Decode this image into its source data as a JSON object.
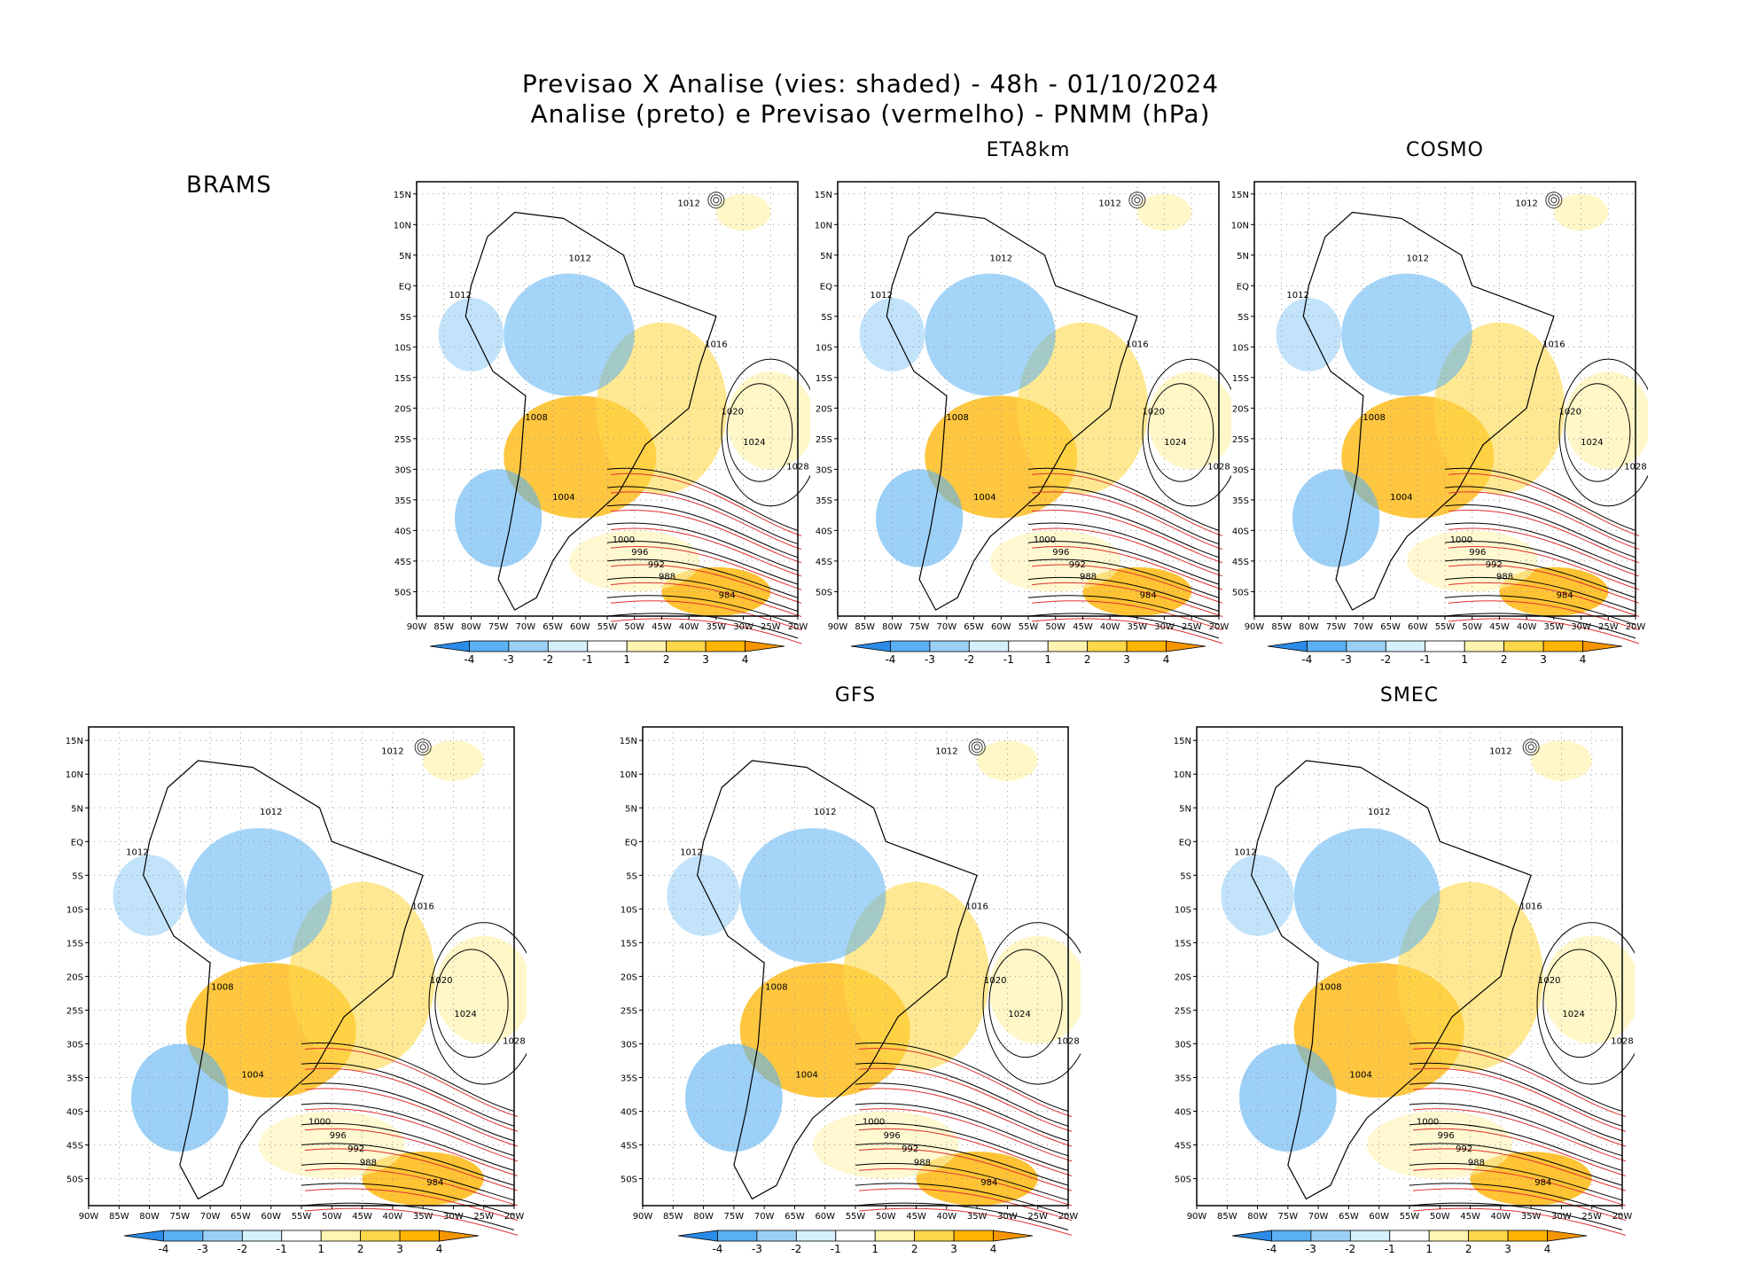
{
  "title": {
    "line1": "Previsao X Analise (vies: shaded) - 48h - 01/10/2024",
    "line2": "Analise (preto) e Previsao (vermelho) - PNMM (hPa)"
  },
  "top_left_label": "BRAMS",
  "lat_ticks": [
    "15N",
    "10N",
    "5N",
    "EQ",
    "5S",
    "10S",
    "15S",
    "20S",
    "25S",
    "30S",
    "35S",
    "40S",
    "45S",
    "50S"
  ],
  "lon_ticks": [
    "90W",
    "85W",
    "80W",
    "75W",
    "70W",
    "65W",
    "60W",
    "55W",
    "50W",
    "45W",
    "40W",
    "35W",
    "30W",
    "25W",
    "20W"
  ],
  "colorbar_ticks": [
    "-4",
    "-3",
    "-2",
    "-1",
    "1",
    "2",
    "3",
    "4"
  ],
  "colorbar_colors": [
    "#2b8be8",
    "#5ab1f2",
    "#9ad0f6",
    "#d4f0fb",
    "#ffffff",
    "#fff4b0",
    "#ffd84a",
    "#ffb400",
    "#f59500"
  ],
  "contour_colors": {
    "analysis": "#000000",
    "forecast": "#e03030"
  },
  "panels": [
    {
      "title": "",
      "contour_labels": [
        "1012",
        "1012",
        "1012",
        "1016",
        "1020",
        "1024",
        "1028",
        "1008",
        "1004",
        "1000",
        "996",
        "992",
        "988",
        "984"
      ]
    },
    {
      "title": "ETA8km",
      "contour_labels": [
        "1012",
        "1012",
        "1012",
        "1016",
        "1020",
        "1024",
        "1028",
        "1008",
        "1004",
        "1000",
        "996",
        "992",
        "988",
        "984"
      ]
    },
    {
      "title": "COSMO",
      "contour_labels": [
        "1012",
        "1012",
        "1012",
        "1016",
        "1020",
        "1024",
        "1028",
        "1008",
        "1004",
        "1000",
        "996",
        "992",
        "988",
        "984"
      ]
    },
    {
      "title": "",
      "contour_labels": [
        "1012",
        "1012",
        "1012",
        "1016",
        "1020",
        "1024",
        "1028",
        "1008",
        "1004",
        "1000",
        "996",
        "992",
        "988",
        "984"
      ]
    },
    {
      "title": "GFS",
      "contour_labels": [
        "1012",
        "1012",
        "1012",
        "1016",
        "1020",
        "1024",
        "1028",
        "1008",
        "1004",
        "1000",
        "996",
        "992",
        "988",
        "984"
      ]
    },
    {
      "title": "SMEC",
      "contour_labels": [
        "1012",
        "1012",
        "1012",
        "1016",
        "1020",
        "1024",
        "1028",
        "1008",
        "1004",
        "1000",
        "996",
        "992",
        "988",
        "984"
      ]
    }
  ]
}
